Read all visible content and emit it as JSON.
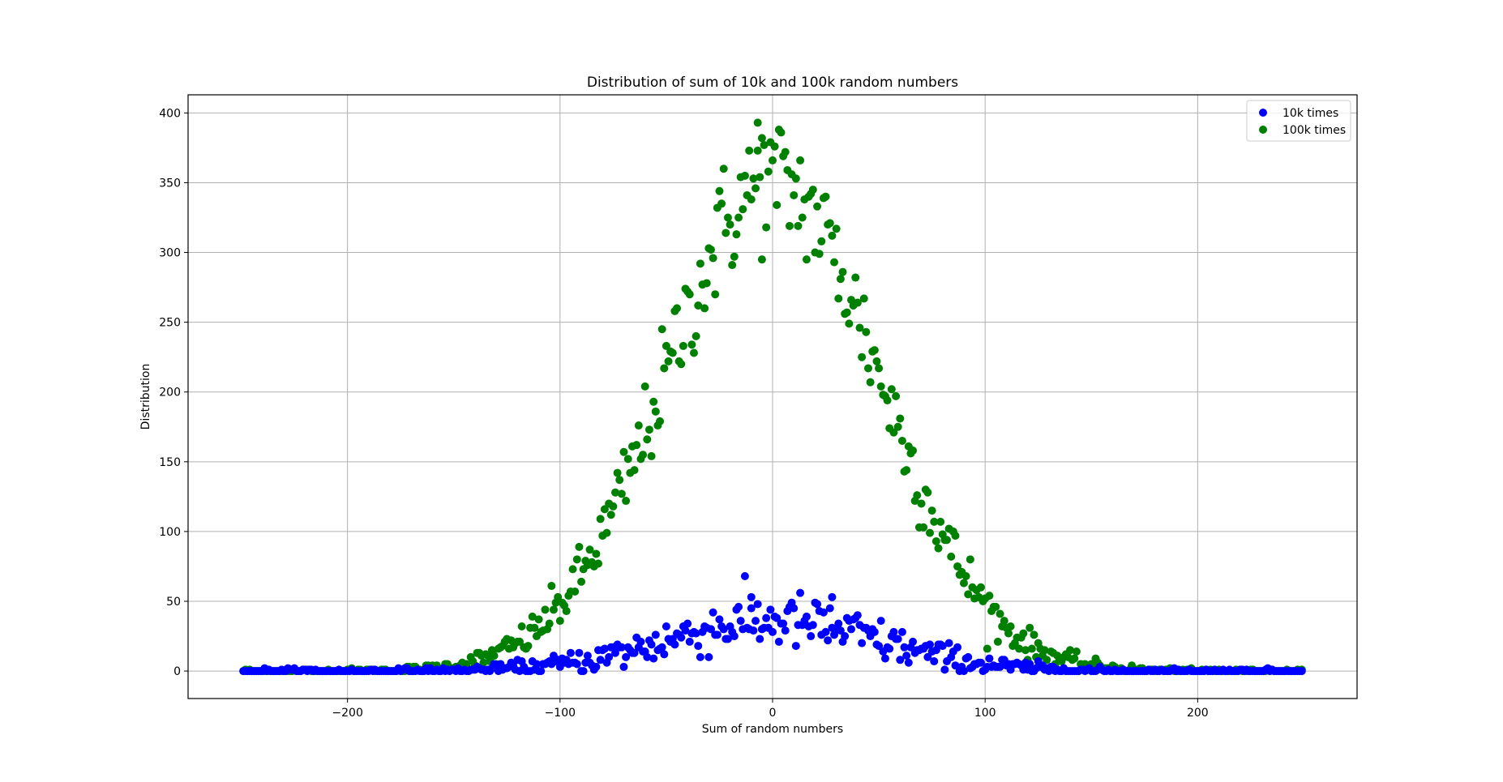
{
  "chart_data": {
    "type": "scatter",
    "title": "Distribution of sum of 10k and 100k random numbers",
    "xlabel": "Sum of random numbers",
    "ylabel": "Distribution",
    "xlim": [
      -275,
      275
    ],
    "ylim": [
      -19.7,
      413
    ],
    "xticks": [
      -200,
      -100,
      0,
      100,
      200
    ],
    "xtick_labels": [
      "−200",
      "−100",
      "0",
      "100",
      "200"
    ],
    "yticks": [
      0,
      50,
      100,
      150,
      200,
      250,
      300,
      350,
      400
    ],
    "ytick_labels": [
      "0",
      "50",
      "100",
      "150",
      "200",
      "250",
      "300",
      "350",
      "400"
    ],
    "grid": true,
    "legend_position": "top-right",
    "x_range": [
      -249,
      249
    ],
    "x_step": 1,
    "series": [
      {
        "name": "10k times",
        "color": "#0000ff",
        "peak": 36,
        "sigma": 50,
        "noise": 0.18,
        "values": [
          0,
          0,
          1,
          0,
          2,
          3,
          4,
          5,
          6,
          8,
          10,
          12,
          14,
          16,
          18,
          20,
          22,
          24,
          26,
          28,
          30,
          31,
          33,
          34,
          35,
          35,
          36,
          35,
          35,
          34,
          33,
          31,
          30,
          28,
          26,
          24,
          22,
          20,
          18,
          16,
          14,
          12,
          10,
          8,
          6,
          5,
          4,
          3,
          2,
          1,
          0
        ]
      },
      {
        "name": "100k times",
        "color": "#008000",
        "peak": 352,
        "sigma": 50,
        "noise": 0.07,
        "values": [
          1,
          1,
          2,
          3,
          5,
          8,
          12,
          18,
          27,
          38,
          52,
          70,
          91,
          114,
          140,
          168,
          198,
          227,
          256,
          283,
          307,
          327,
          342,
          351,
          352,
          351,
          342,
          327,
          307,
          283,
          256,
          227,
          198,
          168,
          140,
          114,
          91,
          70,
          52,
          38,
          27,
          18,
          12,
          8,
          5,
          3,
          2,
          1,
          1,
          0,
          0
        ]
      }
    ],
    "outliers": [
      {
        "series": "10k times",
        "x": -10,
        "y": 53
      },
      {
        "series": "10k times",
        "x": 28,
        "y": 53
      },
      {
        "series": "100k times",
        "x": -7,
        "y": 393
      },
      {
        "series": "100k times",
        "x": -5,
        "y": 382
      }
    ]
  }
}
